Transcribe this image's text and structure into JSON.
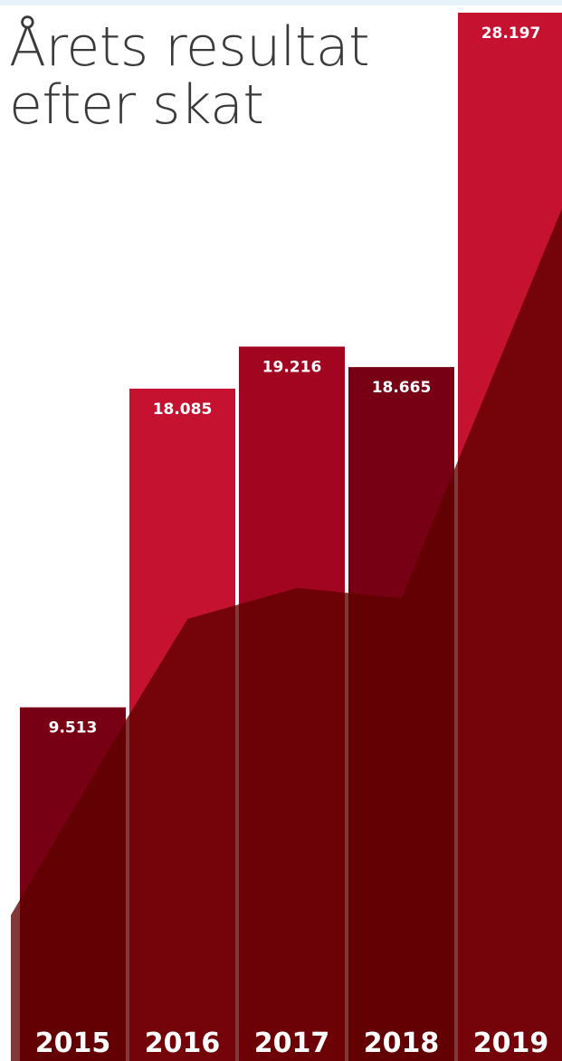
{
  "chart_data": {
    "type": "bar",
    "title": "Årets resultat efter skat",
    "categories": [
      "2015",
      "2016",
      "2017",
      "2018",
      "2019"
    ],
    "values": [
      9513,
      18085,
      19216,
      18665,
      28197
    ],
    "value_labels": [
      "9.513",
      "18.085",
      "19.216",
      "18.665",
      "28.197"
    ],
    "xlabel": "",
    "ylabel": "",
    "ylim": [
      0,
      28197
    ],
    "grid": false,
    "legend": "none",
    "bar_colors": [
      "#780014",
      "#c41230",
      "#a1051f",
      "#780014",
      "#c41230"
    ],
    "overlay_color": "#5e0000",
    "label_color": "#ffffff"
  }
}
